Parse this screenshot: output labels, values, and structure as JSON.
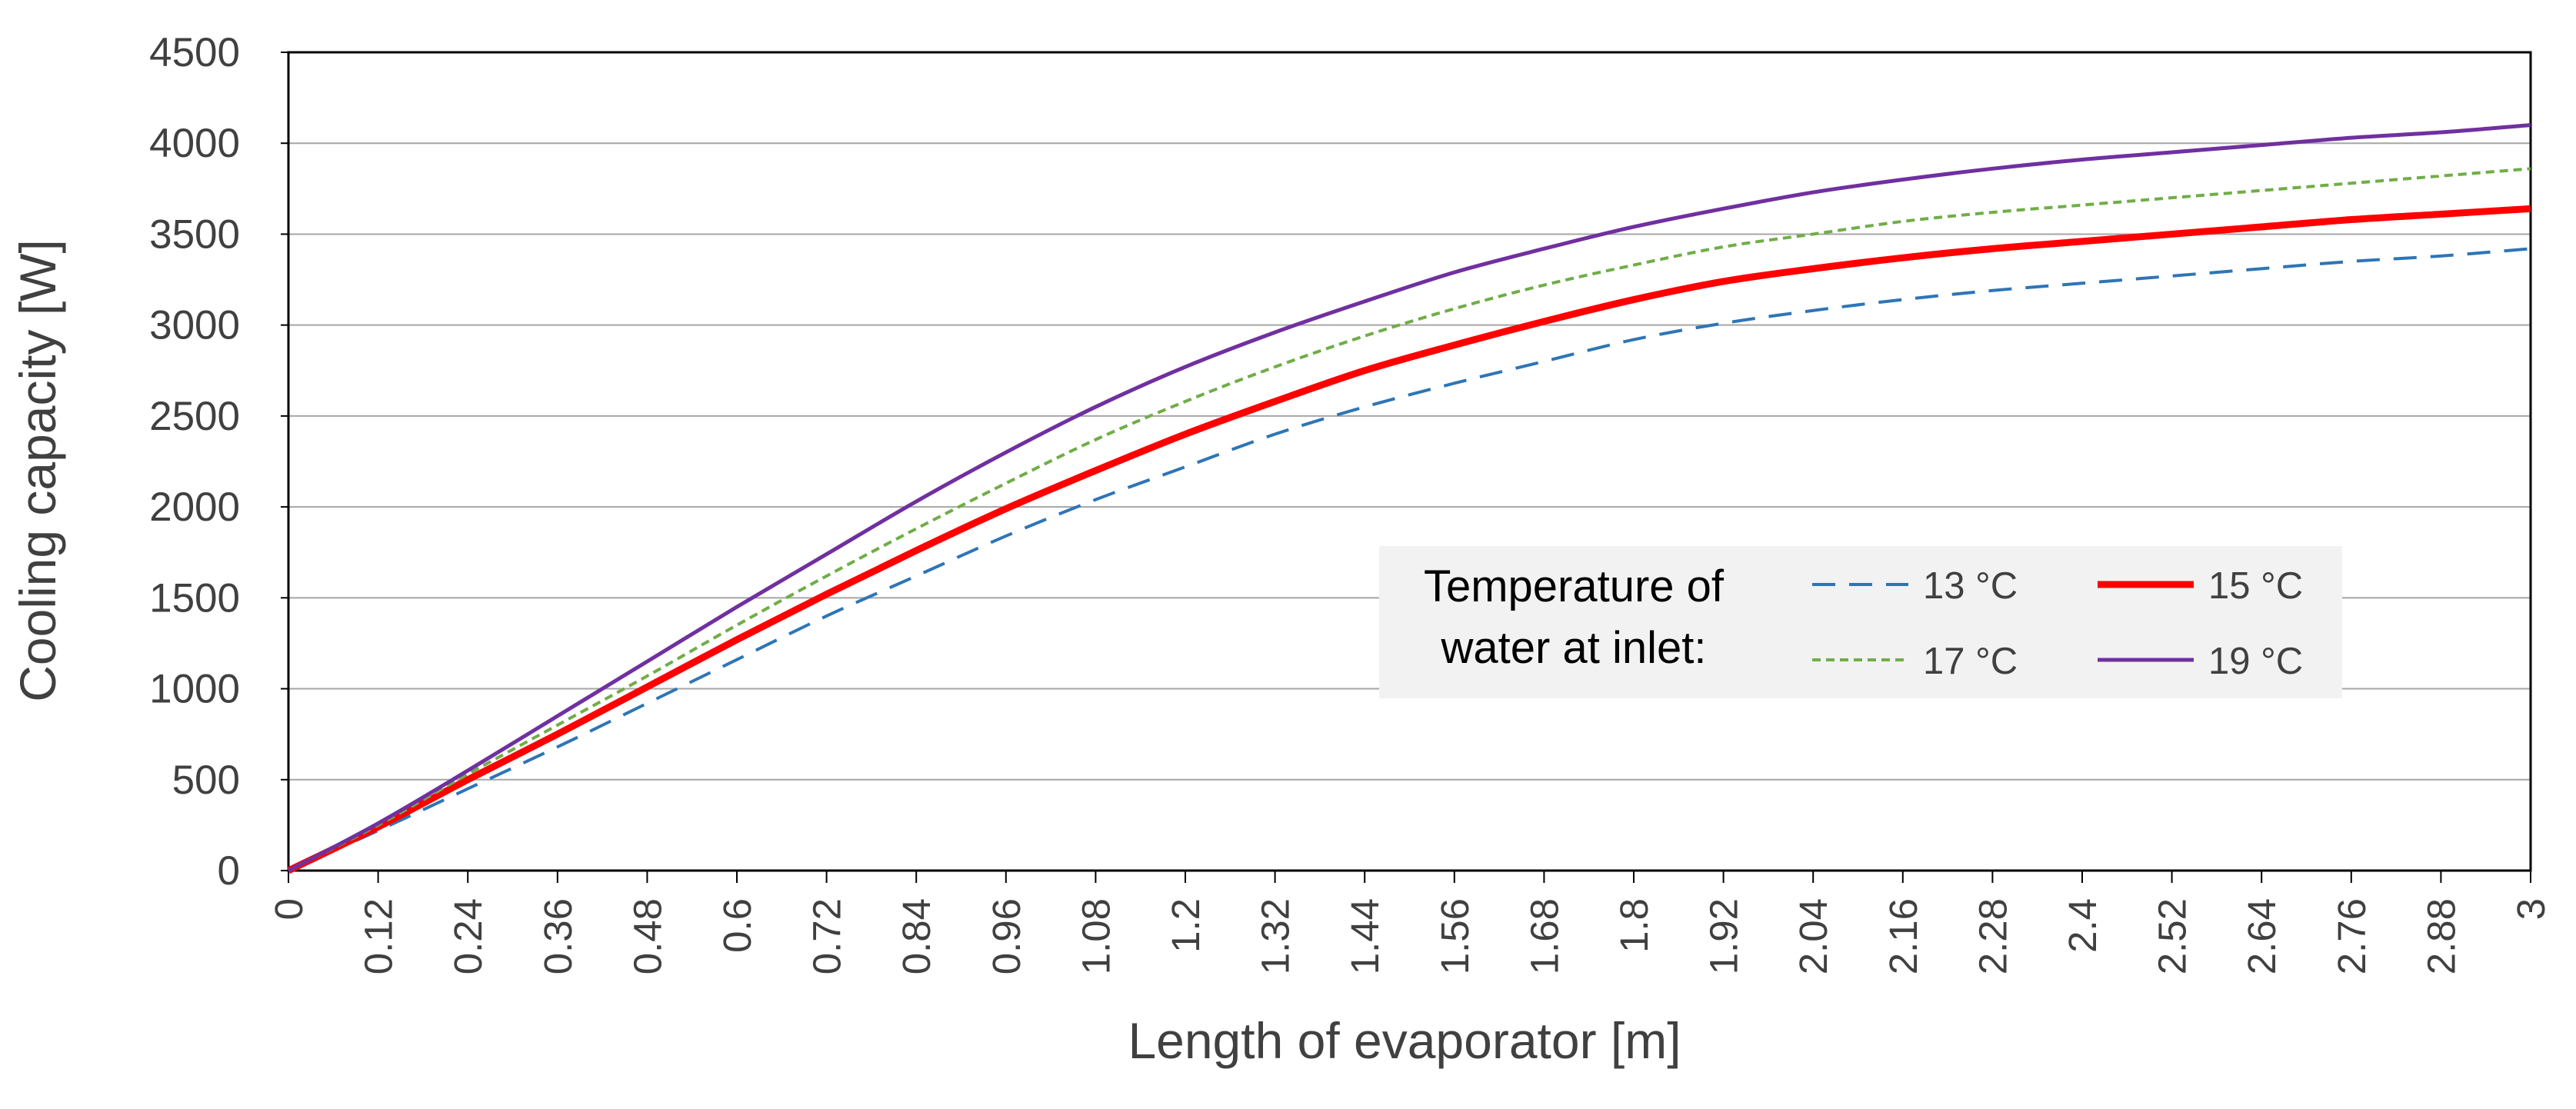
{
  "chart_data": {
    "type": "line",
    "title": "",
    "xlabel": "Length of evaporator [m]",
    "ylabel": "Cooling capacity [W]",
    "xlim": [
      0,
      3
    ],
    "ylim": [
      0,
      4500
    ],
    "grid": true,
    "legend_title": [
      "Temperature of",
      "water at inlet:"
    ],
    "legend_position": "center-right",
    "x_tick_labels": [
      "0",
      "0.12",
      "0.24",
      "0.36",
      "0.48",
      "0.6",
      "0.72",
      "0.84",
      "0.96",
      "1.08",
      "1.2",
      "1.32",
      "1.44",
      "1.56",
      "1.68",
      "1.8",
      "1.92",
      "2.04",
      "2.16",
      "2.28",
      "2.4",
      "2.52",
      "2.64",
      "2.76",
      "2.88",
      "3"
    ],
    "y_tick_labels": [
      "0",
      "500",
      "1000",
      "1500",
      "2000",
      "2500",
      "3000",
      "3500",
      "4000",
      "4500"
    ],
    "y_ticks": [
      0,
      500,
      1000,
      1500,
      2000,
      2500,
      3000,
      3500,
      4000,
      4500
    ],
    "x": [
      0,
      0.12,
      0.24,
      0.36,
      0.48,
      0.6,
      0.72,
      0.84,
      0.96,
      1.08,
      1.2,
      1.32,
      1.44,
      1.56,
      1.68,
      1.8,
      1.92,
      2.04,
      2.16,
      2.28,
      2.4,
      2.52,
      2.64,
      2.76,
      2.88,
      3
    ],
    "series": [
      {
        "name": "13 °C",
        "color": "#2e75b6",
        "style": "dashed",
        "values": [
          0,
          220,
          450,
          680,
          920,
          1160,
          1400,
          1620,
          1840,
          2040,
          2220,
          2400,
          2550,
          2680,
          2800,
          2920,
          3010,
          3080,
          3140,
          3190,
          3230,
          3270,
          3310,
          3350,
          3380,
          3420
        ]
      },
      {
        "name": "15 °C",
        "color": "#ff0000",
        "style": "solid-thick",
        "values": [
          0,
          240,
          500,
          750,
          1010,
          1270,
          1520,
          1760,
          1990,
          2200,
          2400,
          2580,
          2750,
          2890,
          3020,
          3140,
          3240,
          3310,
          3370,
          3420,
          3460,
          3500,
          3540,
          3580,
          3610,
          3640
        ]
      },
      {
        "name": "17 °C",
        "color": "#70ad47",
        "style": "dotted",
        "values": [
          0,
          250,
          530,
          800,
          1070,
          1350,
          1620,
          1880,
          2130,
          2370,
          2580,
          2770,
          2940,
          3090,
          3220,
          3330,
          3430,
          3500,
          3570,
          3620,
          3660,
          3700,
          3740,
          3780,
          3820,
          3860
        ]
      },
      {
        "name": "19 °C",
        "color": "#7030a0",
        "style": "solid",
        "values": [
          0,
          260,
          550,
          850,
          1150,
          1450,
          1740,
          2030,
          2300,
          2550,
          2770,
          2960,
          3130,
          3290,
          3420,
          3540,
          3640,
          3730,
          3800,
          3860,
          3910,
          3950,
          3990,
          4030,
          4060,
          4100
        ]
      }
    ]
  }
}
